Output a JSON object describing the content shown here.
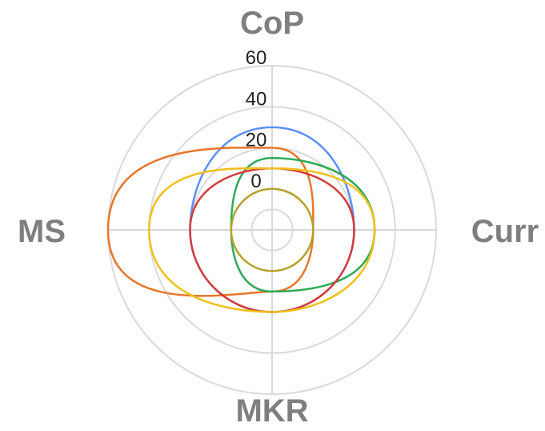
{
  "chart_data": {
    "type": "radar",
    "categories": [
      "CoP",
      "Curr",
      "MKR",
      "MS"
    ],
    "r_ticks": [
      "0",
      "20",
      "40",
      "60"
    ],
    "r_range": [
      -20,
      60
    ],
    "grid": true,
    "legend": "none",
    "series": [
      {
        "color": "#5b8ff9",
        "values": [
          30,
          20,
          20,
          20
        ]
      },
      {
        "color": "#e8762b",
        "values": [
          20,
          0,
          10,
          60
        ]
      },
      {
        "color": "#2eaa56",
        "values": [
          15,
          30,
          10,
          0
        ]
      },
      {
        "color": "#d63b3b",
        "values": [
          10,
          20,
          20,
          20
        ]
      },
      {
        "color": "#f0bf1a",
        "values": [
          10,
          30,
          20,
          40
        ]
      },
      {
        "color": "#b4a22a",
        "values": [
          0,
          0,
          0,
          0
        ]
      }
    ]
  }
}
